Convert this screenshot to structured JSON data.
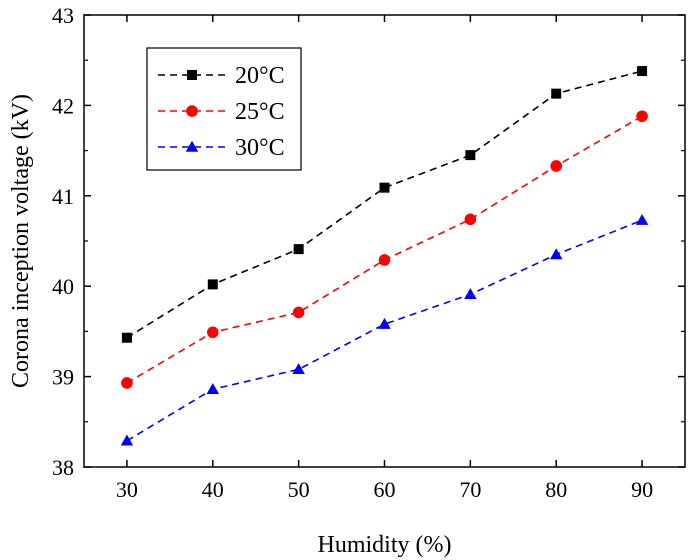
{
  "chart_data": {
    "type": "line",
    "title": "",
    "xlabel": "Humidity (%)",
    "ylabel": "Corona inception voltage (kV)",
    "x": [
      30,
      40,
      50,
      60,
      70,
      80,
      90
    ],
    "xlim": [
      25,
      95
    ],
    "ylim": [
      38,
      43
    ],
    "xticks": [
      "30",
      "40",
      "50",
      "60",
      "70",
      "80",
      "90"
    ],
    "yticks": [
      "38",
      "39",
      "40",
      "41",
      "42",
      "43"
    ],
    "grid": false,
    "legend_position": "top-left",
    "series": [
      {
        "name": "20°C",
        "color": "#000000",
        "marker": "square",
        "line_style": "dashed",
        "values": [
          39.43,
          40.02,
          40.41,
          41.09,
          41.45,
          42.13,
          42.38
        ]
      },
      {
        "name": "25°C",
        "color": "#ff0000",
        "marker": "circle",
        "line_style": "dashed",
        "values": [
          38.93,
          39.49,
          39.71,
          40.29,
          40.74,
          41.33,
          41.88
        ]
      },
      {
        "name": "30°C",
        "color": "#0000ff",
        "marker": "triangle",
        "line_style": "dashed",
        "values": [
          38.29,
          38.86,
          39.08,
          39.58,
          39.91,
          40.35,
          40.73
        ]
      }
    ]
  }
}
